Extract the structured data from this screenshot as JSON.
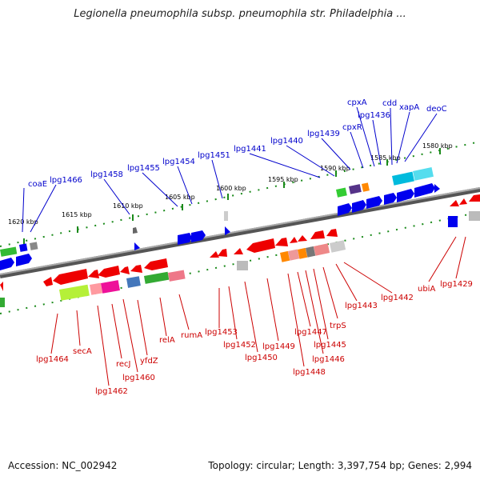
{
  "title": "Legionella pneumophila subsp. pneumophila str. Philadelphia ...",
  "accession": "Accession: NC_002942",
  "summary": "Topology: circular; Length: 3,397,754 bp; Genes: 2,994",
  "colors": {
    "forward_strand": "#0000ee",
    "reverse_strand": "#ee0000",
    "backbone": "#808080",
    "tick": "#1a8a1a"
  },
  "kbp_labels": [
    "1620 kbp",
    "1615 kbp",
    "1610 kbp",
    "1605 kbp",
    "1600 kbp",
    "1595 kbp",
    "1590 kbp",
    "1585 kbp",
    "1580 kbp"
  ],
  "top_labels": [
    "coaE",
    "lpg1466",
    "lpg1458",
    "lpg1455",
    "lpg1454",
    "lpg1451",
    "lpg1441",
    "lpg1440",
    "lpg1439",
    "cpxR",
    "cpxA",
    "lpg1436",
    "cdd",
    "xapA",
    "deoC"
  ],
  "bottom_labels": [
    "lpg1464",
    "secA",
    "lpg1462",
    "recJ",
    "lpg1460",
    "yfdZ",
    "relA",
    "rumA",
    "lpg1453",
    "lpg1452",
    "lpg1450",
    "lpg1449",
    "lpg1448",
    "lpg1447",
    "lpg1446",
    "lpg1445",
    "trpS",
    "lpg1443",
    "lpg1442",
    "ubiA",
    "lpg1429"
  ]
}
